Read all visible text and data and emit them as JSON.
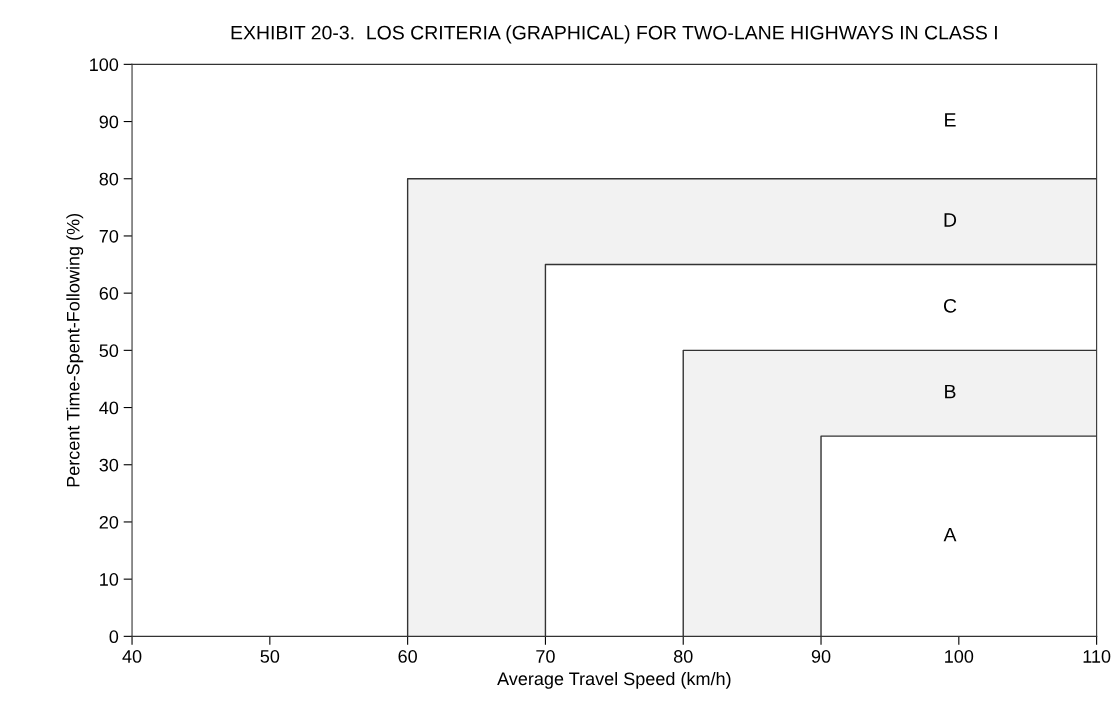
{
  "chart_data": {
    "type": "line",
    "title": "EXHIBIT 20-3.  LOS CRITERIA (GRAPHICAL) FOR TWO-LANE HIGHWAYS IN CLASS I",
    "xlabel": "Average Travel Speed (km/h)",
    "ylabel": "Percent Time-Spent-Following (%)",
    "xlim": [
      40,
      110
    ],
    "ylim": [
      0,
      100
    ],
    "xticks": [
      40,
      50,
      60,
      70,
      80,
      90,
      100,
      110
    ],
    "yticks": [
      0,
      10,
      20,
      30,
      40,
      50,
      60,
      70,
      80,
      90,
      100
    ],
    "grid": false,
    "marker": "none",
    "line_style": "solid",
    "series": [
      {
        "color": "#333333",
        "x": [
          60,
          60,
          110
        ],
        "values": [
          0,
          80,
          80
        ]
      },
      {
        "color": "#333333",
        "x": [
          70,
          70,
          110
        ],
        "values": [
          0,
          65,
          65
        ]
      },
      {
        "color": "#333333",
        "x": [
          80,
          80,
          110
        ],
        "values": [
          0,
          50,
          50
        ]
      },
      {
        "color": "#333333",
        "x": [
          90,
          90,
          110
        ],
        "values": [
          0,
          35,
          35
        ]
      }
    ],
    "annotations": [
      "E",
      "D",
      "C",
      "B",
      "A"
    ]
  }
}
